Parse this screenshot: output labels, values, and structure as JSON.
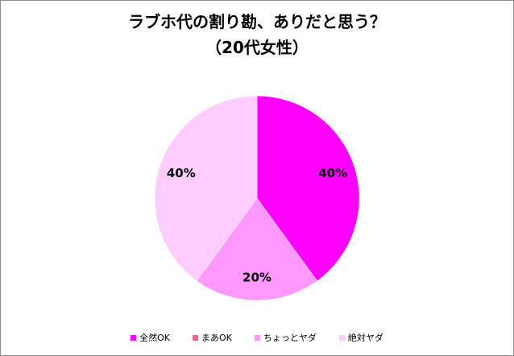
{
  "chart_data": {
    "type": "pie",
    "title": "ラブホ代の割り勘、ありだと思う？",
    "subtitle": "（20代女性）",
    "categories": [
      "全然OK",
      "まあOK",
      "ちょっとヤダ",
      "絶対ヤダ"
    ],
    "values": [
      40,
      0,
      20,
      40
    ],
    "data_labels": [
      "40%",
      "",
      "20%",
      "40%"
    ],
    "colors": [
      "#ff00ff",
      "#f0609a",
      "#ff99ff",
      "#ffccff"
    ],
    "start_angle_deg": 0,
    "direction": "clockwise",
    "legend_position": "bottom"
  }
}
